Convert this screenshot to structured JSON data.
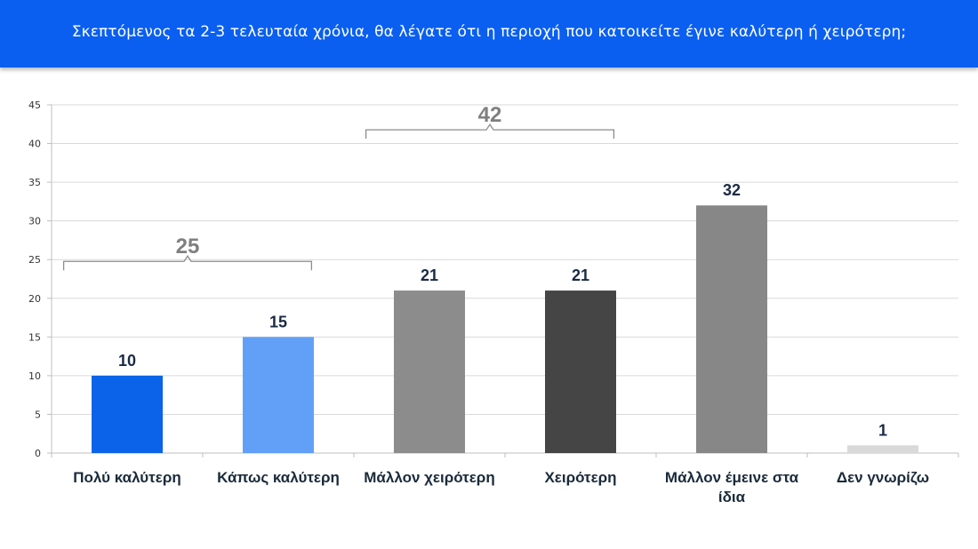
{
  "header": {
    "title": "Σκεπτόμενος τα 2-3 τελευταία χρόνια, θα λέγατε ότι η περιοχή που κατοικείτε έγινε καλύτερη ή χειρότερη;",
    "background_color": "#0a5ff0"
  },
  "chart_data": {
    "type": "bar",
    "title": "Σκεπτόμενος τα 2-3 τελευταία χρόνια, θα λέγατε ότι η περιοχή που κατοικείτε έγινε καλύτερη ή χειρότερη;",
    "categories": [
      [
        "Πολύ καλύτερη"
      ],
      [
        "Κάπως καλύτερη"
      ],
      [
        "Μάλλον χειρότερη"
      ],
      [
        "Χειρότερη"
      ],
      [
        "Μάλλον έμεινε στα",
        "ίδια"
      ],
      [
        "Δεν γνωρίζω"
      ]
    ],
    "values": [
      10,
      15,
      21,
      21,
      32,
      1
    ],
    "data_labels": [
      "10",
      "15",
      "21",
      "21",
      "32",
      "1"
    ],
    "bar_colors": [
      "#0a63e8",
      "#62a0f7",
      "#8c8c8c",
      "#454545",
      "#878787",
      "#d9d9d9"
    ],
    "ylim": [
      0,
      45
    ],
    "yticks": [
      0,
      5,
      10,
      15,
      20,
      25,
      30,
      35,
      40,
      45
    ],
    "grid": true,
    "legend": "none",
    "groups": [
      {
        "label": "25",
        "value": 25,
        "from_index": 0,
        "to_index": 1
      },
      {
        "label": "42",
        "value": 42,
        "from_index": 2,
        "to_index": 3
      }
    ]
  }
}
